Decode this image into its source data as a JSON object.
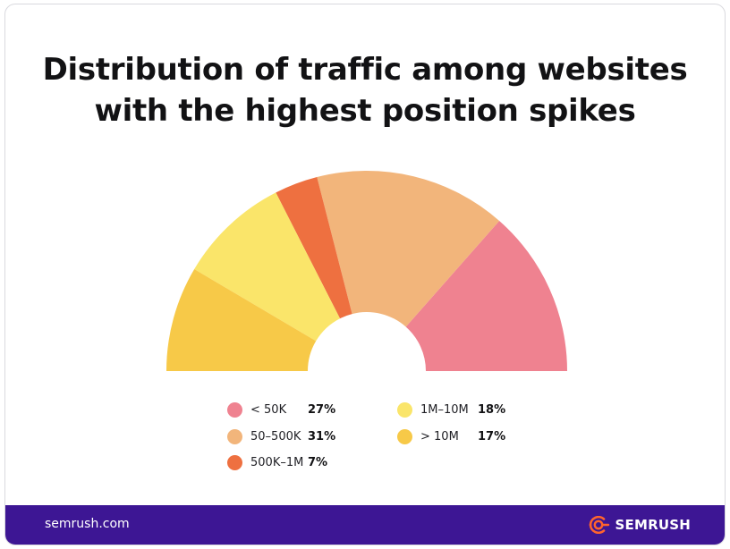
{
  "chart_data": {
    "type": "pie",
    "subtype": "half-donut",
    "title_lines": [
      "Distribution of traffic among websites",
      "with the highest position spikes"
    ],
    "categories": [
      "< 50K",
      "50–500K",
      "500K–1M",
      "1M–10M",
      "> 10M"
    ],
    "values": [
      27,
      31,
      7,
      18,
      17
    ],
    "value_labels": [
      "27%",
      "31%",
      "7%",
      "18%",
      "17%"
    ],
    "colors": [
      "#ef8290",
      "#f2b57b",
      "#ee7040",
      "#fae56a",
      "#f7c948"
    ],
    "legend_position": "bottom"
  },
  "footer": {
    "site": "semrush.com",
    "brand": "SEMRUSH",
    "brand_icon": "semrush-flame-icon",
    "background": "#3d1694"
  }
}
